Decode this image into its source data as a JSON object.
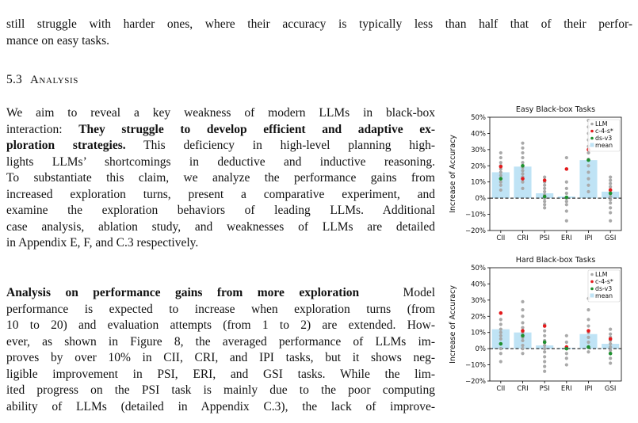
{
  "intro_para": [
    "still struggle with harder ones, where their accuracy is typically less than half that of their perfor-",
    "mance on easy tasks."
  ],
  "section": {
    "number": "5.3",
    "title": "Analysis"
  },
  "para1": {
    "lines": [
      [
        "We aim to reveal a key weakness of modern LLMs in black-box",
        ""
      ],
      [
        "interaction: ",
        "They struggle to develop efficient and adaptive ex-"
      ],
      [
        "",
        "ploration strategies."
      ],
      [
        " This deficiency in high-level planning high-",
        ""
      ],
      [
        "lights LLMs’ shortcomings in deductive and inductive reasoning.",
        ""
      ],
      [
        "To substantiate this claim, we analyze the performance gains from",
        ""
      ],
      [
        "increased exploration turns, present a comparative experiment, and",
        ""
      ],
      [
        "examine the exploration behaviors of leading LLMs.  Additional",
        ""
      ],
      [
        "case analysis, ablation study, and weaknesses of LLMs are detailed",
        ""
      ],
      [
        "in Appendix E, F, and C.3 respectively.",
        ""
      ]
    ]
  },
  "para2": {
    "heading": "Analysis on performance gains from more exploration",
    "lines": [
      "Model",
      "performance is expected to increase when exploration turns (from",
      "10 to 20) and evaluation attempts (from 1 to 2) are extended. How-",
      "ever, as shown in Figure 8, the averaged performance of LLMs im-",
      "proves by over 10% in CII, CRI, and IPI tasks, but it shows neg-",
      "ligible improvement in PSI, ERI, and GSI tasks.  While the lim-",
      "ited progress on the PSI task is mainly due to the poor computing",
      "ability of LLMs (detailed in Appendix C.3), the lack of improve-"
    ]
  },
  "chart_data": [
    {
      "type": "bar",
      "title": "Easy Black-box Tasks",
      "ylabel": "Increase of Accuracy",
      "ylim": [
        -20,
        50
      ],
      "yticks": [
        "−20%",
        "−10%",
        "0%",
        "10%",
        "20%",
        "30%",
        "40%",
        "50%"
      ],
      "categories": [
        "CII",
        "CRI",
        "PSI",
        "ERI",
        "IPI",
        "GSI"
      ],
      "legend": {
        "position": "top-right",
        "entries": [
          "LLM",
          "c-4-s*",
          "ds-v3",
          "mean"
        ]
      },
      "colors": {
        "llm": "#a9a9a9",
        "c4s": "#e31a1c",
        "dsv3": "#1e8f2e",
        "mean": "#bfe3f5"
      },
      "series": [
        {
          "name": "mean",
          "values": [
            16,
            19.5,
            3,
            1,
            23.5,
            4
          ]
        },
        {
          "name": "c-4-s*",
          "values": [
            19.5,
            12,
            11,
            18,
            30,
            5
          ]
        },
        {
          "name": "ds-v3",
          "values": [
            12,
            20,
            1,
            0.5,
            23.5,
            3
          ]
        },
        {
          "name": "LLM",
          "values": [
            [
              28,
              25,
              22,
              20,
              18,
              16,
              14,
              12,
              10,
              8,
              5
            ],
            [
              34,
              31,
              28,
              25,
              22,
              19,
              17,
              15,
              13,
              10,
              6
            ],
            [
              13,
              10,
              8,
              6,
              4,
              2,
              0,
              -2,
              -4,
              -6
            ],
            [
              25,
              10,
              6,
              3,
              0,
              -2,
              -4,
              -8,
              -14
            ],
            [
              48,
              44,
              40,
              36,
              32,
              28,
              24,
              20,
              16,
              12,
              8,
              4
            ],
            [
              13,
              11,
              9,
              7,
              5,
              3,
              1,
              -1,
              -3,
              -6,
              -9,
              -14
            ]
          ]
        }
      ]
    },
    {
      "type": "bar",
      "title": "Hard Black-box Tasks",
      "ylabel": "Increase of Accuracy",
      "ylim": [
        -20,
        50
      ],
      "yticks": [
        "−20%",
        "−10%",
        "0%",
        "10%",
        "20%",
        "30%",
        "40%",
        "50%"
      ],
      "categories": [
        "CII",
        "CRI",
        "PSI",
        "ERI",
        "IPI",
        "GSI"
      ],
      "legend": {
        "position": "top-right",
        "entries": [
          "LLM",
          "c-4-s*",
          "ds-v3",
          "mean"
        ]
      },
      "colors": {
        "llm": "#a9a9a9",
        "c4s": "#e31a1c",
        "dsv3": "#1e8f2e",
        "mean": "#bfe3f5"
      },
      "series": [
        {
          "name": "mean",
          "values": [
            12,
            10,
            2,
            0.5,
            9,
            3
          ]
        },
        {
          "name": "c-4-s*",
          "values": [
            22,
            11,
            14,
            1,
            11,
            6
          ]
        },
        {
          "name": "ds-v3",
          "values": [
            3,
            8,
            4,
            0,
            1,
            -3
          ]
        },
        {
          "name": "LLM",
          "values": [
            [
              22,
              18,
              15,
              12,
              10,
              8,
              6,
              3,
              0,
              -3,
              -8
            ],
            [
              29,
              24,
              20,
              16,
              13,
              10,
              7,
              5,
              2,
              0,
              -3
            ],
            [
              15,
              11,
              8,
              5,
              2,
              0,
              -2,
              -5,
              -8,
              -11,
              -14
            ],
            [
              8,
              4,
              1,
              0,
              -3,
              -6,
              -10
            ],
            [
              31,
              24,
              18,
              14,
              10,
              7,
              4,
              1,
              -2
            ],
            [
              12,
              9,
              7,
              5,
              3,
              1,
              -1,
              -3,
              -6,
              -9
            ]
          ]
        }
      ]
    }
  ]
}
